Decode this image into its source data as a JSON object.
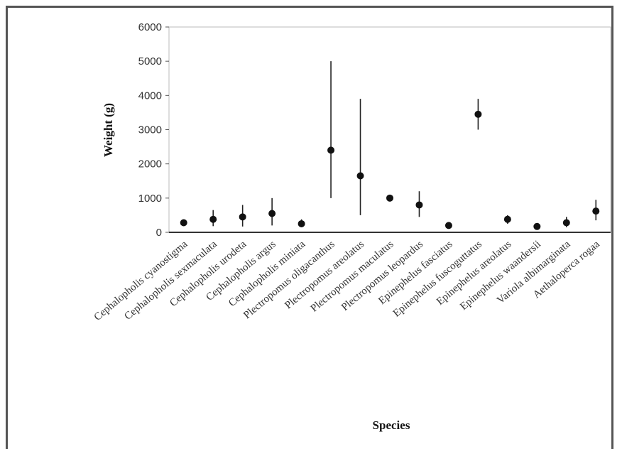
{
  "chart_data": {
    "type": "scatter",
    "xlabel": "Species",
    "ylabel": "Weight (g)",
    "ylim": [
      0,
      6000
    ],
    "yticks": [
      0,
      1000,
      2000,
      3000,
      4000,
      5000,
      6000
    ],
    "grid": false,
    "categories": [
      "Cephalopholis cyanostigma",
      "Cephalopholis sexmaculata",
      "Cephalopholis urodeta",
      "Cephalopholis argus",
      "Cephalopholis miniata",
      "Plectropomus oligacanthus",
      "Plectropomus areolatus",
      "Plectropomus maculatus",
      "Plectropomus leopardus",
      "Epinephelus fasciatus",
      "Epinephelus fuscoguttatus",
      "Epinephelus areolatus",
      "Epinephelus waandersii",
      "Variola albimarginata",
      "Aethaloperca rogaa"
    ],
    "series": [
      {
        "values": [
          280,
          380,
          450,
          550,
          250,
          2400,
          1650,
          1000,
          800,
          200,
          3450,
          380,
          170,
          280,
          620
        ],
        "error_low": [
          200,
          180,
          170,
          200,
          170,
          1000,
          500,
          950,
          450,
          170,
          3000,
          250,
          140,
          150,
          350
        ],
        "error_high": [
          360,
          650,
          800,
          1000,
          380,
          5000,
          3900,
          1050,
          1200,
          240,
          3900,
          500,
          200,
          450,
          950
        ]
      }
    ]
  }
}
